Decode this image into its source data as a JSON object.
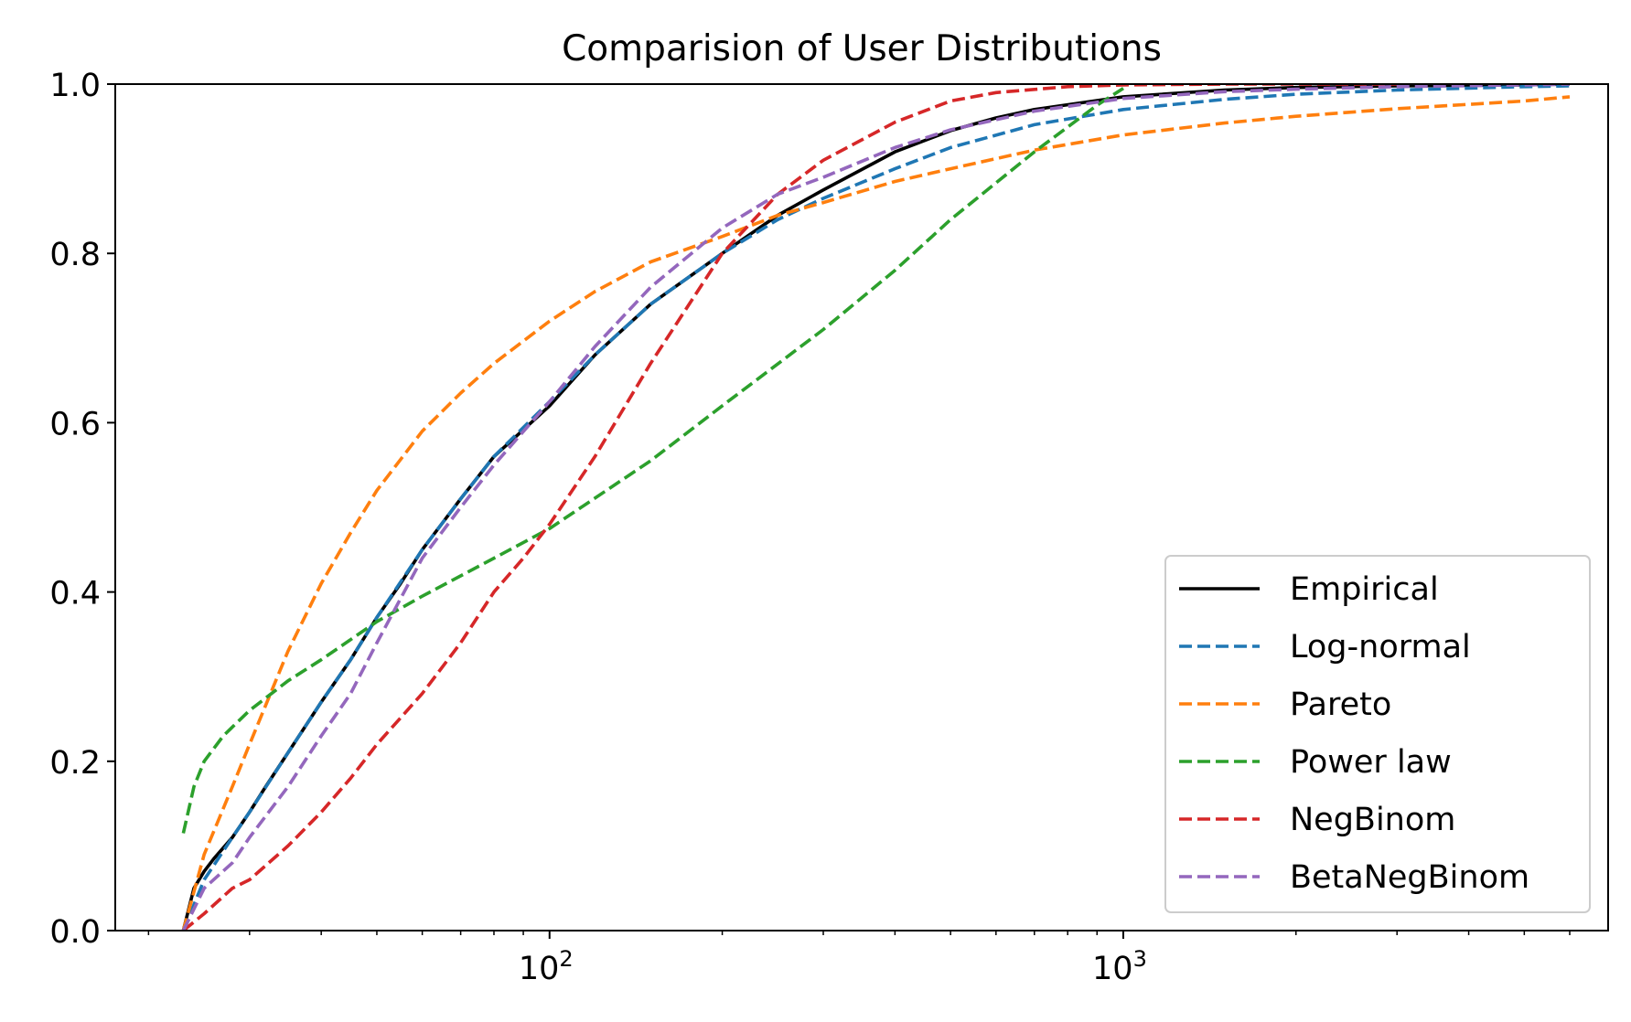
{
  "chart_data": {
    "type": "line",
    "title": "Comparision of User Distributions",
    "xlabel": "",
    "ylabel": "",
    "xscale": "log",
    "xlim": [
      17.5,
      7000
    ],
    "ylim": [
      0,
      1
    ],
    "xticks": [
      {
        "value": 100,
        "base": "10",
        "exp": "2"
      },
      {
        "value": 1000,
        "base": "10",
        "exp": "3"
      }
    ],
    "yticks": [
      {
        "value": 0.0,
        "label": "0.0"
      },
      {
        "value": 0.2,
        "label": "0.2"
      },
      {
        "value": 0.4,
        "label": "0.4"
      },
      {
        "value": 0.6,
        "label": "0.6"
      },
      {
        "value": 0.8,
        "label": "0.8"
      },
      {
        "value": 1.0,
        "label": "1.0"
      }
    ],
    "grid": false,
    "legend_position": "lower right",
    "series": [
      {
        "name": "Empirical",
        "color": "#000000",
        "style": "solid",
        "x": [
          23,
          24,
          25,
          26,
          28,
          30,
          32,
          35,
          40,
          45,
          50,
          55,
          60,
          70,
          80,
          100,
          120,
          150,
          200,
          250,
          300,
          400,
          500,
          600,
          700,
          1000,
          1500,
          2000,
          3000,
          5000,
          6000
        ],
        "y": [
          0.0,
          0.05,
          0.07,
          0.085,
          0.11,
          0.14,
          0.17,
          0.21,
          0.27,
          0.32,
          0.37,
          0.41,
          0.45,
          0.51,
          0.56,
          0.62,
          0.68,
          0.74,
          0.8,
          0.845,
          0.875,
          0.92,
          0.945,
          0.96,
          0.97,
          0.985,
          0.993,
          0.996,
          0.998,
          0.999,
          1.0
        ]
      },
      {
        "name": "Log-normal",
        "color": "#1f77b4",
        "style": "dashed",
        "x": [
          23,
          25,
          28,
          30,
          35,
          40,
          45,
          50,
          60,
          70,
          80,
          100,
          120,
          150,
          200,
          250,
          300,
          400,
          500,
          700,
          1000,
          1500,
          2000,
          3000,
          5000,
          6000
        ],
        "y": [
          0.0,
          0.06,
          0.11,
          0.14,
          0.21,
          0.27,
          0.32,
          0.37,
          0.45,
          0.51,
          0.56,
          0.625,
          0.68,
          0.74,
          0.8,
          0.84,
          0.865,
          0.9,
          0.925,
          0.952,
          0.97,
          0.982,
          0.988,
          0.993,
          0.997,
          0.998
        ]
      },
      {
        "name": "Pareto",
        "color": "#ff7f0e",
        "style": "dashed",
        "x": [
          23,
          25,
          28,
          30,
          35,
          40,
          45,
          50,
          60,
          70,
          80,
          100,
          120,
          150,
          200,
          250,
          300,
          400,
          500,
          700,
          1000,
          1500,
          2000,
          3000,
          5000,
          6000
        ],
        "y": [
          0.0,
          0.09,
          0.17,
          0.22,
          0.33,
          0.41,
          0.47,
          0.52,
          0.59,
          0.635,
          0.67,
          0.72,
          0.755,
          0.79,
          0.82,
          0.845,
          0.86,
          0.885,
          0.9,
          0.922,
          0.94,
          0.954,
          0.962,
          0.971,
          0.98,
          0.985
        ]
      },
      {
        "name": "Power law",
        "color": "#2ca02c",
        "style": "dashed",
        "x": [
          23,
          24,
          25,
          27,
          30,
          35,
          40,
          50,
          60,
          80,
          100,
          150,
          200,
          300,
          400,
          500,
          700,
          900,
          1000
        ],
        "y": [
          0.115,
          0.17,
          0.2,
          0.23,
          0.26,
          0.295,
          0.32,
          0.365,
          0.395,
          0.44,
          0.475,
          0.555,
          0.62,
          0.71,
          0.78,
          0.84,
          0.92,
          0.975,
          0.995
        ]
      },
      {
        "name": "NegBinom",
        "color": "#d62728",
        "style": "dashed",
        "x": [
          23,
          25,
          28,
          30,
          35,
          40,
          45,
          50,
          60,
          70,
          80,
          90,
          100,
          120,
          150,
          200,
          250,
          300,
          400,
          500,
          600,
          800,
          1000,
          1500,
          2000,
          3000
        ],
        "y": [
          0.0,
          0.02,
          0.05,
          0.06,
          0.1,
          0.14,
          0.18,
          0.22,
          0.28,
          0.34,
          0.4,
          0.44,
          0.48,
          0.56,
          0.67,
          0.8,
          0.87,
          0.91,
          0.955,
          0.98,
          0.99,
          0.997,
          0.999,
          1.0,
          1.0,
          1.0
        ]
      },
      {
        "name": "BetaNegBinom",
        "color": "#9467bd",
        "style": "dashed",
        "x": [
          23,
          25,
          28,
          30,
          35,
          40,
          45,
          50,
          60,
          70,
          80,
          100,
          120,
          150,
          200,
          250,
          300,
          400,
          500,
          700,
          1000,
          1500,
          2000,
          3000,
          5000,
          6000
        ],
        "y": [
          0.0,
          0.05,
          0.08,
          0.11,
          0.17,
          0.23,
          0.28,
          0.34,
          0.44,
          0.5,
          0.55,
          0.625,
          0.69,
          0.76,
          0.83,
          0.87,
          0.89,
          0.925,
          0.946,
          0.968,
          0.983,
          0.991,
          0.994,
          0.997,
          0.999,
          1.0
        ]
      }
    ]
  }
}
